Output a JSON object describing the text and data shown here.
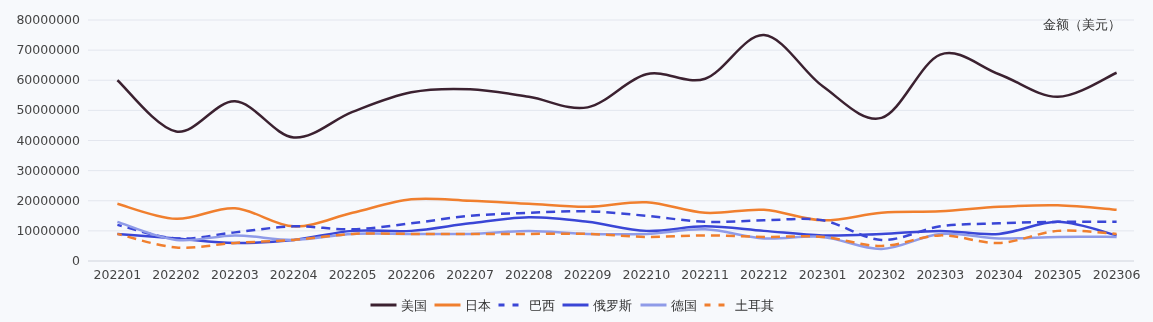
{
  "chart_data": {
    "type": "line",
    "ylabel": "金额（美元）",
    "categories": [
      "202201",
      "202202",
      "202203",
      "202204",
      "202205",
      "202206",
      "202207",
      "202208",
      "202209",
      "202210",
      "202211",
      "202212",
      "202301",
      "202302",
      "202303",
      "202304",
      "202305",
      "202306"
    ],
    "ylim": [
      0,
      80000000
    ],
    "yticks": [
      0,
      10000000,
      20000000,
      30000000,
      40000000,
      50000000,
      60000000,
      70000000,
      80000000
    ],
    "grid": "y",
    "legend": "bottom",
    "marker": "none",
    "series": [
      {
        "name": "美国",
        "color": "#3b2130",
        "line_style": "solid",
        "values": [
          60000000,
          43000000,
          53000000,
          41000000,
          49500000,
          56000000,
          57000000,
          54500000,
          51000000,
          62000000,
          60500000,
          75000000,
          58000000,
          47500000,
          68500000,
          62000000,
          54500000,
          62500000
        ]
      },
      {
        "name": "日本",
        "color": "#f07f2e",
        "line_style": "solid",
        "values": [
          19000000,
          14000000,
          17500000,
          11500000,
          16000000,
          20500000,
          20000000,
          19000000,
          18000000,
          19500000,
          16000000,
          17000000,
          13500000,
          16000000,
          16500000,
          18000000,
          18500000,
          17000000
        ]
      },
      {
        "name": "巴西",
        "color": "#3a46d6",
        "line_style": "dashed",
        "values": [
          12000000,
          7500000,
          9500000,
          11500000,
          10500000,
          12500000,
          15000000,
          16000000,
          16500000,
          15000000,
          13000000,
          13500000,
          13500000,
          7000000,
          11500000,
          12500000,
          13000000,
          13000000
        ]
      },
      {
        "name": "俄罗斯",
        "color": "#3a46d6",
        "line_style": "solid",
        "values": [
          9000000,
          7500000,
          6000000,
          7000000,
          10000000,
          10000000,
          12500000,
          14500000,
          13000000,
          10000000,
          11500000,
          10000000,
          8500000,
          9000000,
          10000000,
          9000000,
          13000000,
          8500000
        ]
      },
      {
        "name": "德国",
        "color": "#8f9be8",
        "line_style": "solid",
        "values": [
          13000000,
          7000000,
          8500000,
          7000000,
          9000000,
          9000000,
          9000000,
          10000000,
          9000000,
          9000000,
          10500000,
          7500000,
          8000000,
          4000000,
          9000000,
          7500000,
          8000000,
          8000000
        ]
      },
      {
        "name": "土耳其",
        "color": "#f07f2e",
        "line_style": "dashed",
        "values": [
          9000000,
          4500000,
          6000000,
          7000000,
          9000000,
          9000000,
          9000000,
          9000000,
          9000000,
          8000000,
          8500000,
          8000000,
          8000000,
          5000000,
          8500000,
          6000000,
          10000000,
          9000000
        ]
      }
    ]
  }
}
